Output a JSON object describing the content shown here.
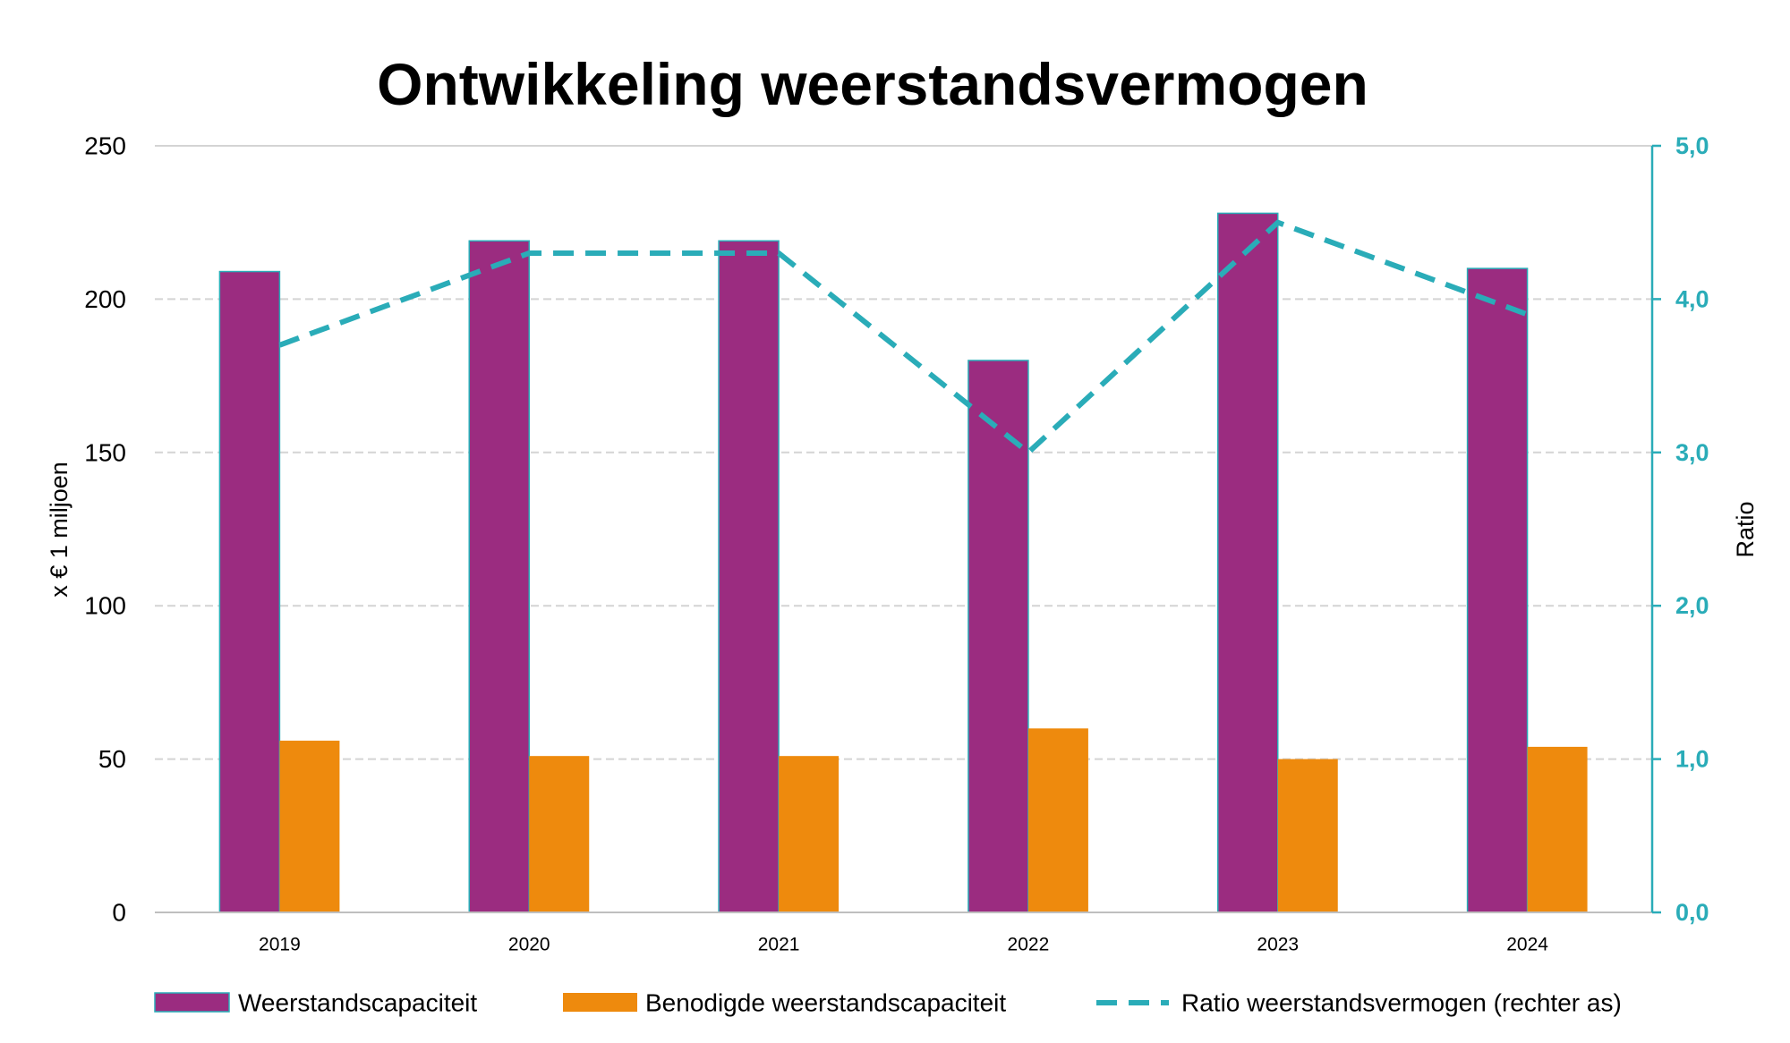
{
  "chart_data": {
    "type": "bar",
    "title": "Ontwikkeling weerstandsvermogen",
    "categories": [
      "2019",
      "2020",
      "2021",
      "2022",
      "2023",
      "2024"
    ],
    "series": [
      {
        "name": "Weerstandscapaciteit",
        "color": "#9B2C80",
        "values": [
          209,
          219,
          219,
          180,
          228,
          210
        ]
      },
      {
        "name": "Benodigde weerstandscapaciteit",
        "color": "#EE8A0D",
        "values": [
          56,
          51,
          51,
          60,
          50,
          54
        ]
      }
    ],
    "secondary_series": [
      {
        "name": "Ratio weerstandsvermogen (rechter as)",
        "color": "#2AACB8",
        "dashed": true,
        "values": [
          3.7,
          4.3,
          4.3,
          3.0,
          4.5,
          3.9
        ]
      }
    ],
    "xlabel": "",
    "ylabel": "x € 1 miljoen",
    "ylim": [
      0,
      250
    ],
    "yticks": [
      0,
      50,
      100,
      150,
      200,
      250
    ],
    "y2label": "Ratio",
    "y2lim": [
      0,
      5
    ],
    "y2ticks": [
      "0,0",
      "1,0",
      "2,0",
      "3,0",
      "4,0",
      "5,0"
    ],
    "grid": true,
    "legend": "bottom"
  }
}
